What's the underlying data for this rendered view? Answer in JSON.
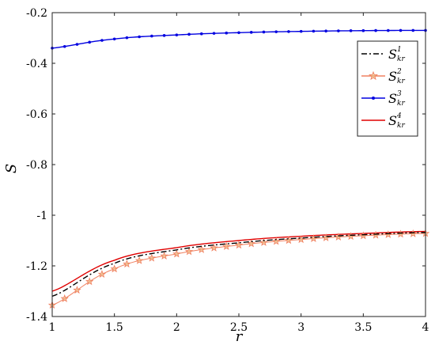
{
  "chart_data": {
    "type": "line",
    "xlabel": "r",
    "ylabel": "S",
    "xlim": [
      1,
      4
    ],
    "ylim": [
      -1.4,
      -0.2
    ],
    "xticks": [
      "1",
      "1.5",
      "2",
      "2.5",
      "3",
      "3.5",
      "4"
    ],
    "yticks": [
      "-0.2",
      "-0.4",
      "-0.6",
      "-0.8",
      "-1",
      "-1.2",
      "-1.4"
    ],
    "grid": false,
    "legend_position": "top-right",
    "x": [
      1.0,
      1.5,
      2.0,
      2.5,
      3.0,
      3.5,
      4.0
    ],
    "series": [
      {
        "base": "S",
        "sub": "kr",
        "sup": "1",
        "color": "#000000",
        "style": "dashdot",
        "marker": "none",
        "values": [
          -1.32,
          -1.19,
          -1.137,
          -1.109,
          -1.09,
          -1.077,
          -1.068
        ]
      },
      {
        "base": "S",
        "sub": "kr",
        "sup": "2",
        "color": "#F08060",
        "style": "solid",
        "marker": "star",
        "values": [
          -1.355,
          -1.212,
          -1.153,
          -1.118,
          -1.096,
          -1.081,
          -1.072
        ]
      },
      {
        "base": "S",
        "sub": "kr",
        "sup": "3",
        "color": "#0000E0",
        "style": "solid",
        "marker": "dot",
        "values": [
          -0.34,
          -0.304,
          -0.288,
          -0.279,
          -0.274,
          -0.271,
          -0.27
        ]
      },
      {
        "base": "S",
        "sub": "kr",
        "sup": "4",
        "color": "#E00000",
        "style": "solid",
        "marker": "none",
        "values": [
          -1.3,
          -1.178,
          -1.128,
          -1.1,
          -1.083,
          -1.072,
          -1.064
        ]
      }
    ]
  }
}
